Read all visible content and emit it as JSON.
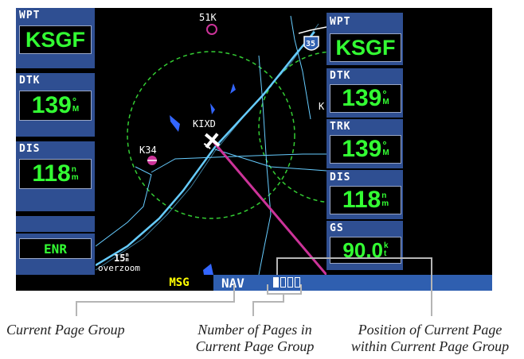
{
  "left_panel": {
    "wpt_label": "WPT",
    "wpt_value": "KSGF",
    "dtk_label": "DTK",
    "dtk_value": "139",
    "dtk_unit_top": "°",
    "dtk_unit_bottom": "M",
    "dis_label": "DIS",
    "dis_value": "118",
    "dis_unit_top": "n",
    "dis_unit_bottom": "m",
    "mode": "ENR"
  },
  "right_panel": {
    "wpt_label": "WPT",
    "wpt_value": "KSGF",
    "dtk_label": "DTK",
    "dtk_value": "139",
    "dtk_unit_top": "°",
    "dtk_unit_bottom": "M",
    "trk_label": "TRK",
    "trk_value": "139",
    "trk_unit_top": "°",
    "trk_unit_bottom": "M",
    "dis_label": "DIS",
    "dis_value": "118",
    "dis_unit_top": "n",
    "dis_unit_bottom": "m",
    "gs_label": "GS",
    "gs_value": "90.0",
    "gs_unit_top": "k",
    "gs_unit_bottom": "t"
  },
  "map": {
    "airport_labels": [
      "51K",
      "KIXD",
      "K34"
    ],
    "edge_label": "K",
    "highway_label": "35",
    "zoom_value": "15",
    "zoom_unit_top": "n",
    "zoom_unit_bottom": "m",
    "zoom_note": "overzoom"
  },
  "bottom_bar": {
    "msg_label": "MSG",
    "page_group": "NAV",
    "pages_total": 4,
    "current_page": 1
  },
  "captions": {
    "current_page_group": "Current Page Group",
    "number_of_pages_line1": "Number of Pages in",
    "number_of_pages_line2": "Current Page Group",
    "position_line1": "Position of Current Page",
    "position_line2": "within Current Page Group"
  },
  "colors": {
    "panel_blue": "#2f4f92",
    "value_green": "#33ff33",
    "range_ring": "#33cc33",
    "course_line": "#cc3399",
    "road": "#66ccff",
    "msg_yellow": "#ffff00"
  }
}
